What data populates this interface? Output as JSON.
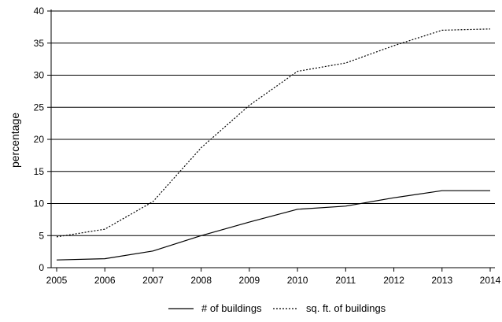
{
  "chart_data": {
    "type": "line",
    "title": "",
    "xlabel": "",
    "ylabel": "percentage",
    "categories": [
      "2005",
      "2006",
      "2007",
      "2008",
      "2009",
      "2010",
      "2011",
      "2012",
      "2013",
      "2014"
    ],
    "ylim": [
      0,
      40
    ],
    "yticks": [
      0,
      5,
      10,
      15,
      20,
      25,
      30,
      35,
      40
    ],
    "grid": "horizontal",
    "legend_position": "bottom",
    "series": [
      {
        "name": "# of buildings",
        "style": "solid",
        "color": "#000000",
        "values": [
          1.2,
          1.4,
          2.6,
          5.0,
          7.1,
          9.1,
          9.6,
          10.9,
          12.0,
          12.0
        ]
      },
      {
        "name": "sq. ft. of buildings",
        "style": "dotted",
        "color": "#000000",
        "values": [
          4.8,
          6.0,
          10.3,
          18.7,
          25.3,
          30.6,
          31.9,
          34.6,
          37.0,
          37.2
        ]
      }
    ]
  }
}
